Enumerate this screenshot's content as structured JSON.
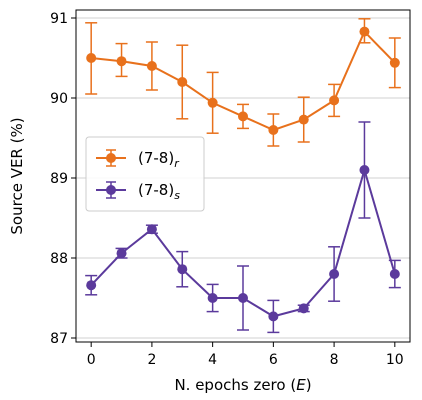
{
  "chart_data": {
    "type": "line",
    "title": "",
    "xlabel": "N. epochs zero (",
    "xlabel_var": "E",
    "xlabel_tail": ")",
    "ylabel": "Source VER (%)",
    "x": [
      0,
      1,
      2,
      3,
      4,
      5,
      6,
      7,
      8,
      9,
      10
    ],
    "xlim": [
      -0.5,
      10.5
    ],
    "ylim": [
      86.95,
      91.1
    ],
    "xticks": [
      0,
      2,
      4,
      6,
      8,
      10
    ],
    "yticks": [
      87,
      88,
      89,
      90,
      91
    ],
    "grid": "horizontal",
    "legend_position": "center-left",
    "series": [
      {
        "name_base": "(7-8)",
        "name_sub": "r",
        "color": "#e8711c",
        "values": [
          90.5,
          90.46,
          90.4,
          90.2,
          89.94,
          89.77,
          89.6,
          89.73,
          89.97,
          90.83,
          90.44
        ],
        "err_low": [
          0.45,
          0.19,
          0.3,
          0.46,
          0.38,
          0.15,
          0.2,
          0.28,
          0.2,
          0.14,
          0.31
        ],
        "err_high": [
          0.44,
          0.22,
          0.3,
          0.46,
          0.38,
          0.15,
          0.2,
          0.28,
          0.2,
          0.16,
          0.31
        ]
      },
      {
        "name_base": "(7-8)",
        "name_sub": "s",
        "color": "#5b3a9c",
        "values": [
          87.66,
          88.06,
          88.36,
          87.86,
          87.5,
          87.5,
          87.27,
          87.37,
          87.8,
          89.1,
          87.8
        ],
        "err_low": [
          0.12,
          0.06,
          0.05,
          0.22,
          0.17,
          0.4,
          0.2,
          0.04,
          0.34,
          0.6,
          0.17
        ],
        "err_high": [
          0.12,
          0.06,
          0.05,
          0.22,
          0.17,
          0.4,
          0.2,
          0.04,
          0.34,
          0.6,
          0.17
        ]
      }
    ]
  }
}
